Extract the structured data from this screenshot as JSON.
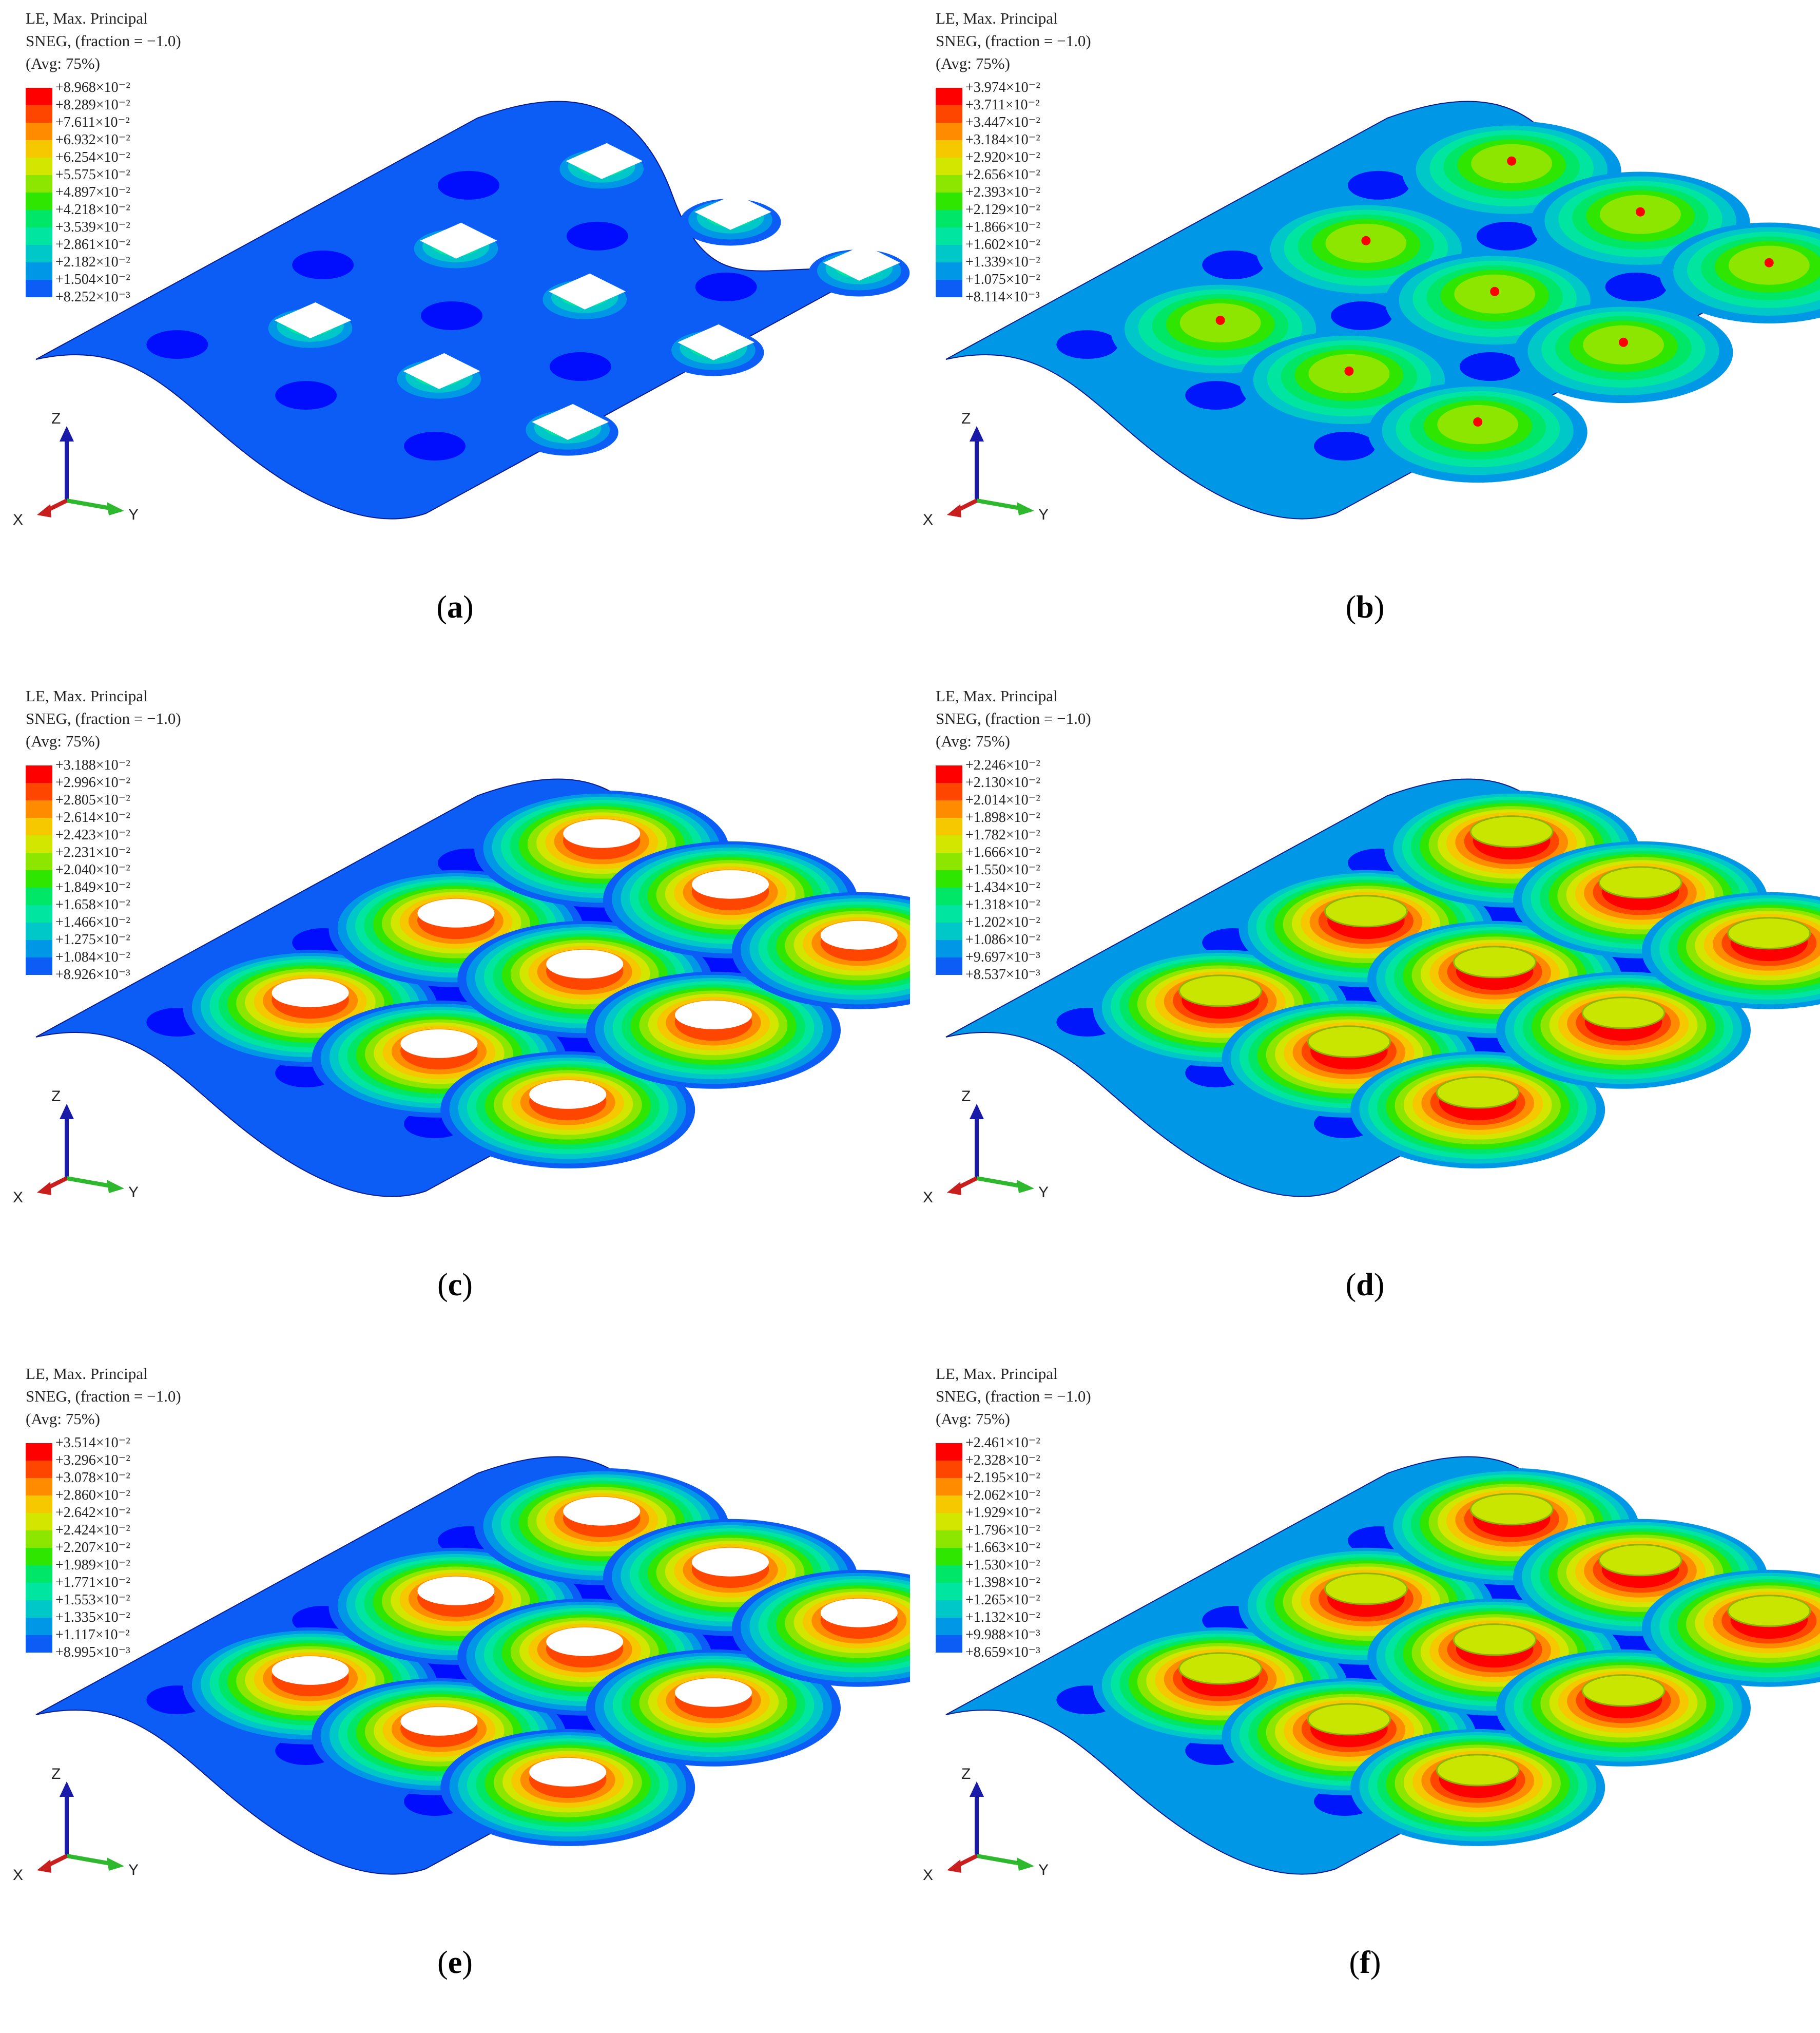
{
  "legend_header": [
    "LE, Max. Principal",
    "SNEG, (fraction = −1.0)",
    "(Avg: 75%)"
  ],
  "colormap": [
    "#0000ff",
    "#0b5df5",
    "#0098e6",
    "#00c8c8",
    "#00e6a0",
    "#00e666",
    "#2ee600",
    "#8ce600",
    "#d2e600",
    "#f5c800",
    "#ff8c00",
    "#ff4600",
    "#ff0000"
  ],
  "axes_labels": {
    "z": "Z",
    "x": "X",
    "y": "Y"
  },
  "panels": [
    {
      "caption": "a",
      "ticks": [
        "+8.968×10⁻²",
        "+8.289×10⁻²",
        "+7.611×10⁻²",
        "+6.932×10⁻²",
        "+6.254×10⁻²",
        "+5.575×10⁻²",
        "+4.897×10⁻²",
        "+4.218×10⁻²",
        "+3.539×10⁻²",
        "+2.861×10⁻²",
        "+2.182×10⁻²",
        "+1.504×10⁻²",
        "+8.252×10⁻³"
      ]
    },
    {
      "caption": "b",
      "ticks": [
        "+3.974×10⁻²",
        "+3.711×10⁻²",
        "+3.447×10⁻²",
        "+3.184×10⁻²",
        "+2.920×10⁻²",
        "+2.656×10⁻²",
        "+2.393×10⁻²",
        "+2.129×10⁻²",
        "+1.866×10⁻²",
        "+1.602×10⁻²",
        "+1.339×10⁻²",
        "+1.075×10⁻²",
        "+8.114×10⁻³"
      ]
    },
    {
      "caption": "c",
      "ticks": [
        "+3.188×10⁻²",
        "+2.996×10⁻²",
        "+2.805×10⁻²",
        "+2.614×10⁻²",
        "+2.423×10⁻²",
        "+2.231×10⁻²",
        "+2.040×10⁻²",
        "+1.849×10⁻²",
        "+1.658×10⁻²",
        "+1.466×10⁻²",
        "+1.275×10⁻²",
        "+1.084×10⁻²",
        "+8.926×10⁻³"
      ]
    },
    {
      "caption": "d",
      "ticks": [
        "+2.246×10⁻²",
        "+2.130×10⁻²",
        "+2.014×10⁻²",
        "+1.898×10⁻²",
        "+1.782×10⁻²",
        "+1.666×10⁻²",
        "+1.550×10⁻²",
        "+1.434×10⁻²",
        "+1.318×10⁻²",
        "+1.202×10⁻²",
        "+1.086×10⁻²",
        "+9.697×10⁻³",
        "+8.537×10⁻³"
      ]
    },
    {
      "caption": "e",
      "ticks": [
        "+3.514×10⁻²",
        "+3.296×10⁻²",
        "+3.078×10⁻²",
        "+2.860×10⁻²",
        "+2.642×10⁻²",
        "+2.424×10⁻²",
        "+2.207×10⁻²",
        "+1.989×10⁻²",
        "+1.771×10⁻²",
        "+1.553×10⁻²",
        "+1.335×10⁻²",
        "+1.117×10⁻²",
        "+8.995×10⁻³"
      ]
    },
    {
      "caption": "f",
      "ticks": [
        "+2.461×10⁻²",
        "+2.328×10⁻²",
        "+2.195×10⁻²",
        "+2.062×10⁻²",
        "+1.929×10⁻²",
        "+1.796×10⁻²",
        "+1.663×10⁻²",
        "+1.530×10⁻²",
        "+1.398×10⁻²",
        "+1.265×10⁻²",
        "+1.132×10⁻²",
        "+9.988×10⁻³",
        "+8.659×10⁻³"
      ]
    }
  ]
}
